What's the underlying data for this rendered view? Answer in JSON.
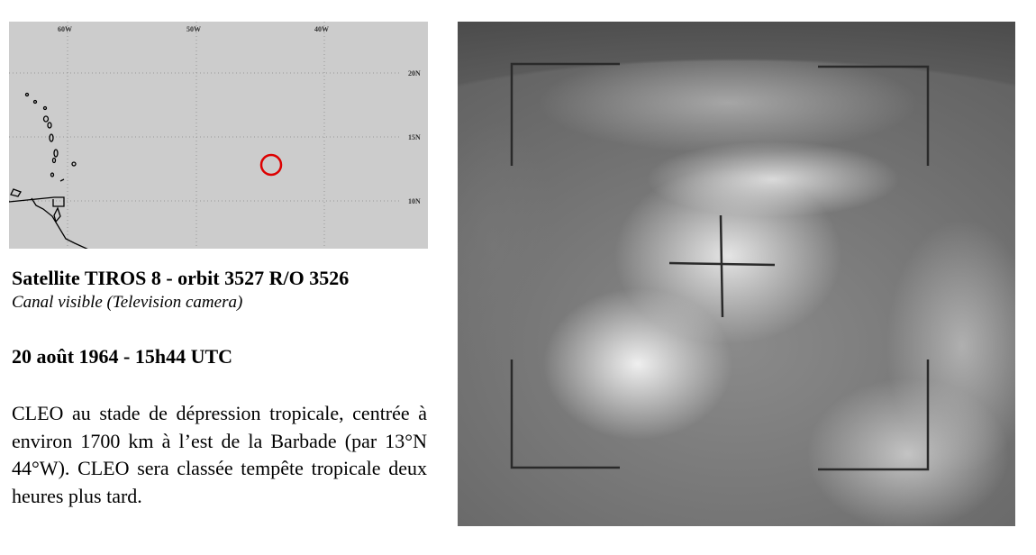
{
  "map": {
    "longitude_labels": [
      "60W",
      "50W",
      "40W"
    ],
    "latitude_labels": [
      "20N",
      "15N",
      "10N"
    ],
    "marker": {
      "lat": 13,
      "lon": -44,
      "color": "#dd0000",
      "icon": "circle-marker-icon"
    },
    "background_color": "#cccccc"
  },
  "caption": {
    "title": "Satellite TIROS 8 - orbit 3527 R/O 3526",
    "subtitle": "Canal visible (Television camera)",
    "date": "20 août 1964 - 15h44 UTC",
    "description": "CLEO au stade de dépression tropicale, centrée à environ 1700 km à l’est de la Barbade (par 13°N 44°W). CLEO sera classée tempête tropicale deux heures plus tard."
  }
}
